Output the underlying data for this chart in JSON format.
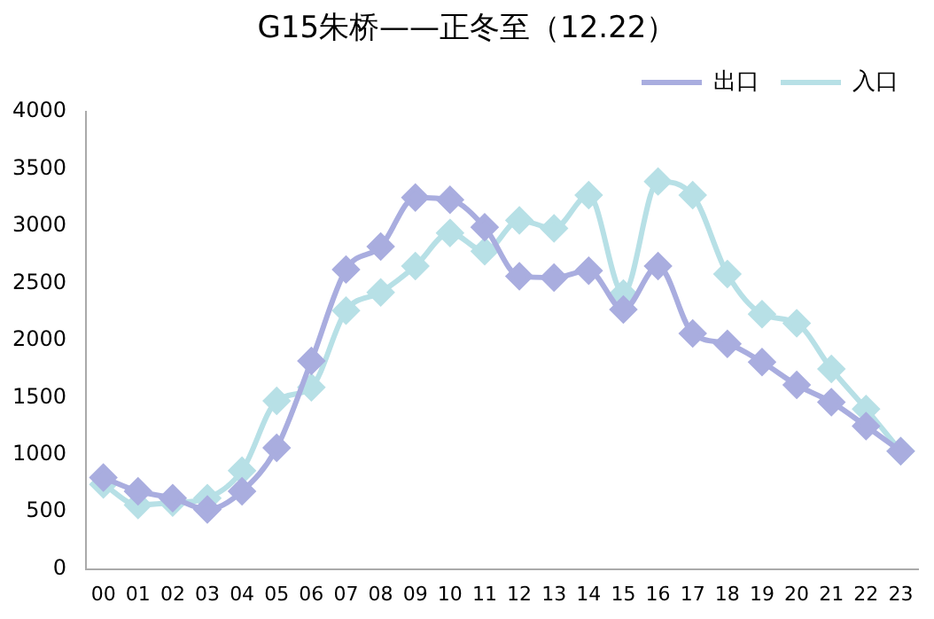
{
  "chart_data": {
    "type": "line",
    "title": "G15朱桥——正冬至（12.22）",
    "categories": [
      "00",
      "01",
      "02",
      "03",
      "04",
      "05",
      "06",
      "07",
      "08",
      "09",
      "10",
      "11",
      "12",
      "13",
      "14",
      "15",
      "16",
      "17",
      "18",
      "19",
      "20",
      "21",
      "22",
      "23"
    ],
    "series": [
      {
        "name": "出口",
        "color": "#a9addf",
        "values": [
          800,
          680,
          620,
          520,
          680,
          1060,
          1820,
          2620,
          2820,
          3250,
          3230,
          2990,
          2560,
          2550,
          2610,
          2270,
          2650,
          2060,
          1970,
          1810,
          1610,
          1460,
          1250,
          1030
        ]
      },
      {
        "name": "入口",
        "color": "#b7e0e6",
        "values": [
          740,
          560,
          580,
          620,
          860,
          1470,
          1590,
          2260,
          2420,
          2650,
          2940,
          2780,
          3050,
          2980,
          3270,
          2410,
          3390,
          3270,
          2580,
          2230,
          2150,
          1750,
          1400,
          1030
        ]
      }
    ],
    "ylim": [
      0,
      4000
    ],
    "yticks": [
      0,
      500,
      1000,
      1500,
      2000,
      2500,
      3000,
      3500,
      4000
    ],
    "grid": false,
    "legend": "top right",
    "marker": "diamond",
    "line_style": "solid"
  }
}
